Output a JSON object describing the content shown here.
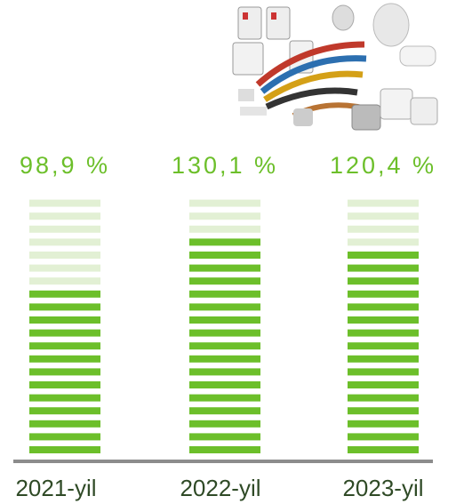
{
  "chart_data": {
    "type": "stripe-bar",
    "categories": [
      "2021-yil",
      "2022-yil",
      "2023-yil"
    ],
    "values": [
      98.9,
      130.1,
      120.4
    ],
    "value_labels": [
      "98,9 %",
      "130,1 %",
      "120,4 %"
    ],
    "color": "#6cbf2a"
  }
}
